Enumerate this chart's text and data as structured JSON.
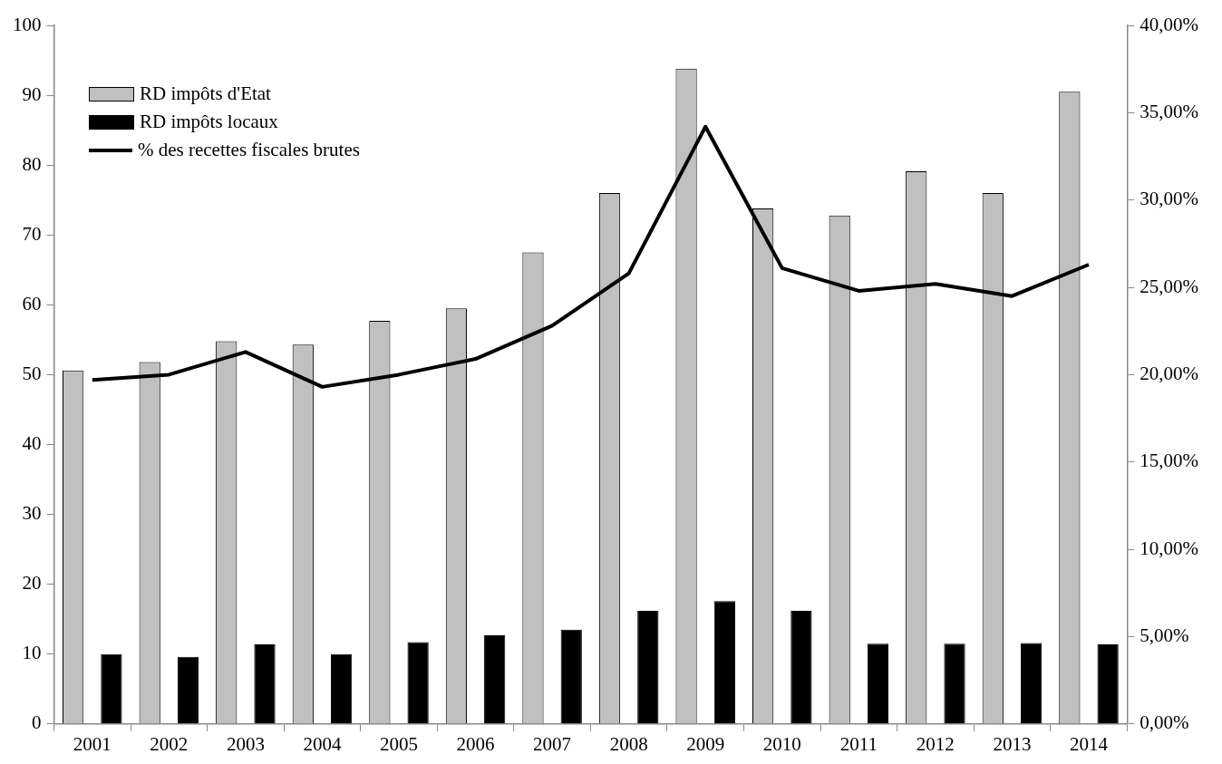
{
  "chart_data": {
    "type": "bar",
    "categories": [
      "2001",
      "2002",
      "2003",
      "2004",
      "2005",
      "2006",
      "2007",
      "2008",
      "2009",
      "2010",
      "2011",
      "2012",
      "2013",
      "2014"
    ],
    "series": [
      {
        "name": "RD impôts d'Etat",
        "color": "#c0c0c0",
        "values": [
          50.6,
          51.8,
          54.8,
          54.3,
          57.7,
          59.5,
          67.5,
          76,
          93.8,
          73.8,
          72.8,
          79.1,
          76,
          90.5
        ]
      },
      {
        "name": "RD impôts locaux",
        "color": "#000000",
        "values": [
          10,
          9.6,
          11.4,
          10,
          11.7,
          12.7,
          13.5,
          16.2,
          17.6,
          16.2,
          11.5,
          11.5,
          11.6,
          11.4
        ]
      },
      {
        "name": "% des recettes fiscales brutes",
        "type": "line",
        "axis": "y2",
        "color": "#000000",
        "values": [
          19.7,
          20.0,
          21.3,
          19.3,
          20.0,
          20.9,
          22.8,
          25.8,
          34.2,
          26.1,
          24.8,
          25.2,
          24.5,
          26.3
        ]
      }
    ],
    "ylim": [
      0,
      100
    ],
    "yticks": [
      0,
      10,
      20,
      30,
      40,
      50,
      60,
      70,
      80,
      90,
      100
    ],
    "y2lim": [
      0,
      40
    ],
    "y2ticks": [
      {
        "value": 0,
        "label": "0,00%"
      },
      {
        "value": 5,
        "label": "5,00%"
      },
      {
        "value": 10,
        "label": "10,00%"
      },
      {
        "value": 15,
        "label": "15,00%"
      },
      {
        "value": 20,
        "label": "20,00%"
      },
      {
        "value": 25,
        "label": "25,00%"
      },
      {
        "value": 30,
        "label": "30,00%"
      },
      {
        "value": 35,
        "label": "35,00%"
      },
      {
        "value": 40,
        "label": "40,00%"
      }
    ],
    "grid": false,
    "legend": "top left",
    "marker": "none",
    "line_style": "solid"
  }
}
